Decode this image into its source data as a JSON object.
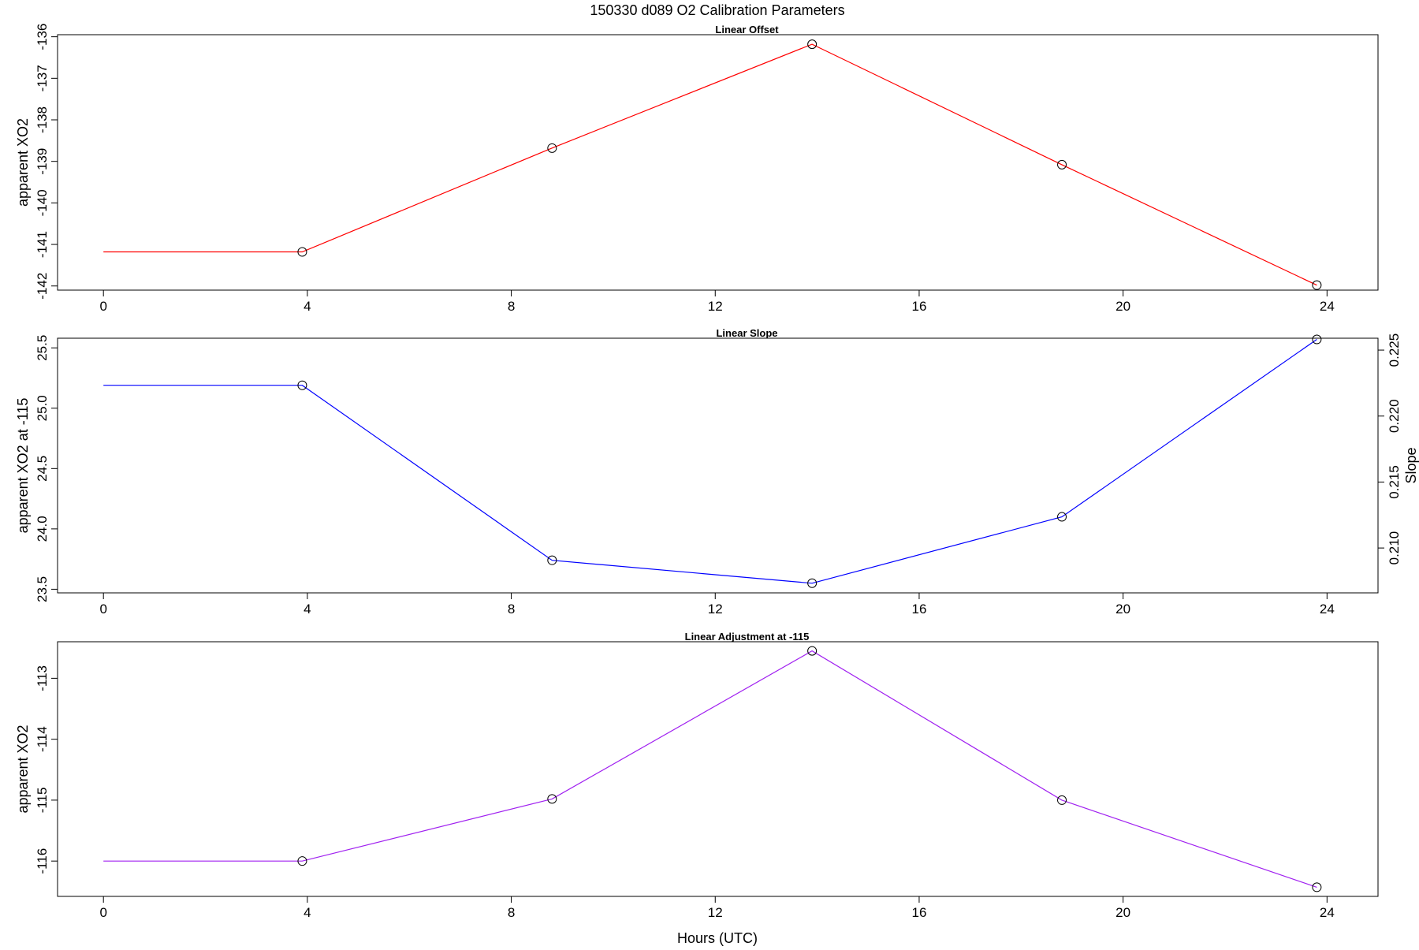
{
  "figure": {
    "title": "150330   d089   O2 Calibration Parameters",
    "xlabel": "Hours (UTC)"
  },
  "chart_data": [
    {
      "type": "line",
      "title": "Linear Offset",
      "xlabel": "",
      "ylabel": "apparent XO2",
      "xlim": [
        -0.9,
        25.0
      ],
      "ylim": [
        -142.1,
        -135.95
      ],
      "xticks": [
        0,
        4,
        8,
        12,
        16,
        20,
        24
      ],
      "yticks": [
        -142,
        -141,
        -140,
        -139,
        -138,
        -137,
        -136
      ],
      "color": "#ff0000",
      "x": [
        0,
        3.9,
        8.8,
        13.9,
        18.8,
        23.8
      ],
      "y": [
        -141.18,
        -141.18,
        -138.68,
        -136.18,
        -139.08,
        -141.98
      ],
      "markers_from_index": 1
    },
    {
      "type": "line",
      "title": "Linear Slope",
      "xlabel": "",
      "ylabel": "apparent XO2 at -115",
      "y2label": "Slope",
      "xlim": [
        -0.9,
        25.0
      ],
      "ylim": [
        23.47,
        25.58
      ],
      "xticks": [
        0,
        4,
        8,
        12,
        16,
        20,
        24
      ],
      "yticks": [
        23.5,
        24.0,
        24.5,
        25.0,
        25.5
      ],
      "y2lim": [
        0.2066,
        0.2259
      ],
      "y2ticks": [
        0.21,
        0.215,
        0.22,
        0.225
      ],
      "color": "#0000ff",
      "x": [
        0,
        3.9,
        8.8,
        13.9,
        18.8,
        23.8
      ],
      "y": [
        25.19,
        25.19,
        23.74,
        23.55,
        24.1,
        25.57
      ],
      "markers_from_index": 1
    },
    {
      "type": "line",
      "title": "Linear Adjustment at -115",
      "xlabel": "",
      "ylabel": "apparent XO2",
      "xlim": [
        -0.9,
        25.0
      ],
      "ylim": [
        -116.58,
        -112.4
      ],
      "xticks": [
        0,
        4,
        8,
        12,
        16,
        20,
        24
      ],
      "yticks": [
        -116,
        -115,
        -114,
        -113
      ],
      "color": "#a020f0",
      "x": [
        0,
        3.9,
        8.8,
        13.9,
        18.8,
        23.8
      ],
      "y": [
        -116.0,
        -116.0,
        -114.98,
        -112.55,
        -115.0,
        -116.43
      ],
      "markers_from_index": 1
    }
  ]
}
